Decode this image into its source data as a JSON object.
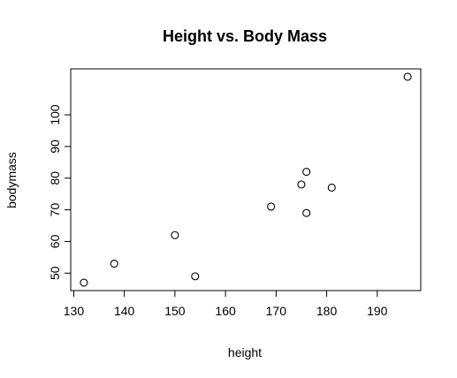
{
  "chart_data": {
    "type": "scatter",
    "title": "Height vs. Body Mass",
    "xlabel": "height",
    "ylabel": "bodymass",
    "xlim": [
      129.4,
      198.6
    ],
    "ylim": [
      44.5,
      114.5
    ],
    "xticks": [
      130,
      140,
      150,
      160,
      170,
      180,
      190
    ],
    "yticks": [
      50,
      60,
      70,
      80,
      90,
      100
    ],
    "grid": false,
    "points": [
      {
        "x": 132,
        "y": 47
      },
      {
        "x": 138,
        "y": 53
      },
      {
        "x": 150,
        "y": 62
      },
      {
        "x": 154,
        "y": 49
      },
      {
        "x": 169,
        "y": 71
      },
      {
        "x": 175,
        "y": 78
      },
      {
        "x": 176,
        "y": 82
      },
      {
        "x": 176,
        "y": 69
      },
      {
        "x": 181,
        "y": 77
      },
      {
        "x": 196,
        "y": 112
      }
    ]
  }
}
